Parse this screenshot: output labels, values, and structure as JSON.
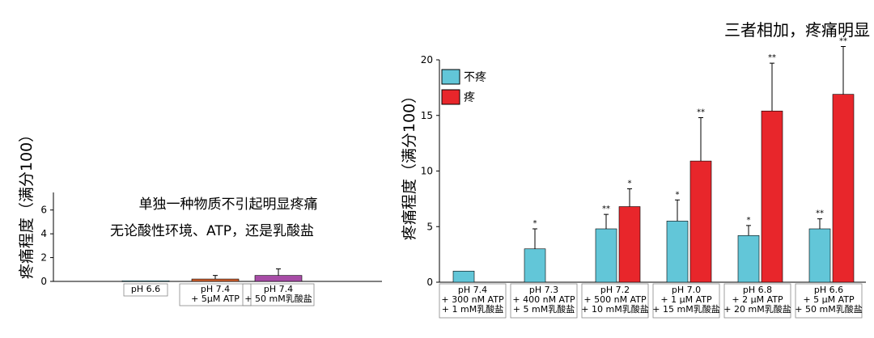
{
  "colors": {
    "no_pain": "#62c6d8",
    "pain": "#e8262b",
    "orange_bar": "#d4602c",
    "purple_bar": "#a74ca6"
  },
  "chart_data": [
    {
      "type": "bar",
      "ylabel": "疼痛程度（满分100）",
      "ylim": [
        0,
        7
      ],
      "yticks": [
        0,
        2,
        4,
        6
      ],
      "annotations": [
        "单独一种物质不引起明显疼痛",
        "无论酸性环境、ATP，还是乳酸盐"
      ],
      "categories": [
        {
          "lines": [
            "pH 6.6"
          ]
        },
        {
          "lines": [
            "pH 7.4",
            "+ 5μM  ATP"
          ]
        },
        {
          "lines": [
            "pH 7.4",
            "+ 50 mM乳酸盐"
          ]
        }
      ],
      "values": [
        0.05,
        0.2,
        0.5
      ],
      "errors": [
        0,
        0.3,
        0.55
      ],
      "bar_colors": [
        "#62c6d8",
        "#d4602c",
        "#a74ca6"
      ]
    },
    {
      "type": "bar",
      "title": "三者相加，疼痛明显",
      "ylabel": "疼痛程度（满分100）",
      "ylim": [
        0,
        20
      ],
      "yticks": [
        0,
        5,
        10,
        15,
        20
      ],
      "legend": {
        "position": "top-left",
        "entries": [
          "不疼",
          "疼"
        ]
      },
      "categories": [
        {
          "lines": [
            "pH 7.4",
            "+ 300 nM ATP",
            "+ 1 mM乳酸盐"
          ]
        },
        {
          "lines": [
            "pH 7.3",
            "+ 400 nM ATP",
            "+ 5 mM乳酸盐"
          ]
        },
        {
          "lines": [
            "pH 7.2",
            "+ 500 nM ATP",
            "+ 10 mM乳酸盐"
          ]
        },
        {
          "lines": [
            "pH 7.0",
            "+ 1 μM ATP",
            "+ 15 mM乳酸盐"
          ]
        },
        {
          "lines": [
            "pH 6.8",
            "+ 2 μM ATP",
            "+ 20 mM乳酸盐"
          ]
        },
        {
          "lines": [
            "pH 6.6",
            "+ 5 μM ATP",
            "+ 50 mM乳酸盐"
          ]
        }
      ],
      "series": [
        {
          "name": "不疼",
          "values": [
            1.0,
            3.0,
            4.8,
            5.5,
            4.2,
            4.8
          ],
          "errors": [
            0,
            1.8,
            1.3,
            1.9,
            0.9,
            0.9
          ],
          "sig": [
            "",
            "*",
            "**",
            "*",
            "*",
            "**"
          ]
        },
        {
          "name": "疼",
          "values": [
            null,
            null,
            6.8,
            10.9,
            15.4,
            16.9
          ],
          "errors": [
            0,
            0,
            1.6,
            3.9,
            4.3,
            4.3
          ],
          "sig": [
            "",
            "",
            "*",
            "**",
            "**",
            "**"
          ]
        }
      ]
    }
  ]
}
